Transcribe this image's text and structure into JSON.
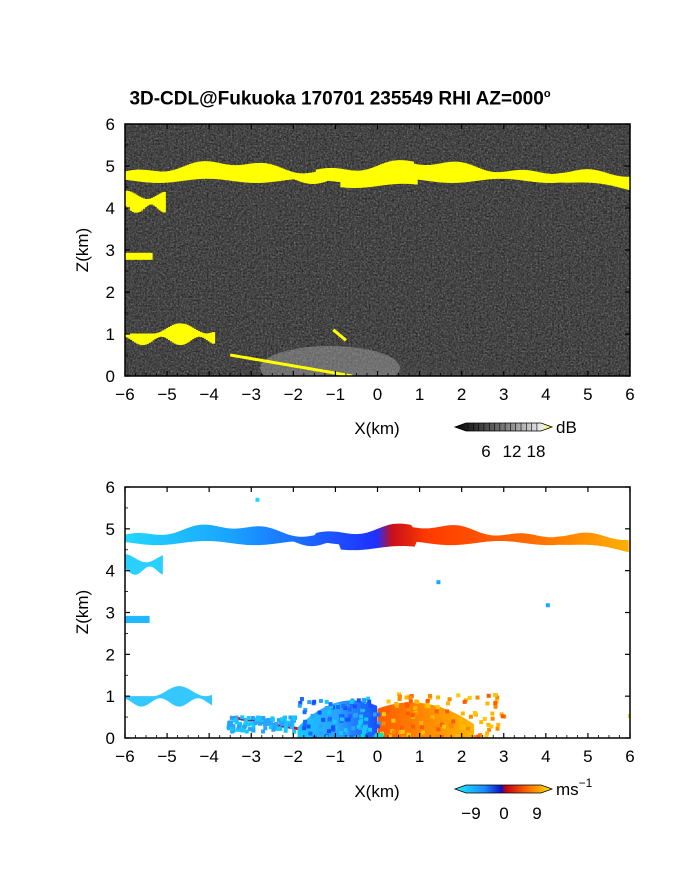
{
  "title": {
    "main": "3D-CDL@Fukuoka 170701 235549 RHI AZ=000",
    "sup": "o"
  },
  "colors": {
    "cloud_yellow": "#ffff00",
    "snr_background": "#262626",
    "velocity_cyan": "#00e5ff",
    "velocity_blue": "#1f3fff",
    "velocity_red": "#ff2a00",
    "velocity_orange": "#ff9900",
    "velocity_yellow": "#ffc800"
  },
  "chart_data": [
    {
      "type": "heatmap",
      "name": "snr-panel",
      "xlabel": "X(km)",
      "ylabel": "Z(km)",
      "xlim": [
        -6,
        6
      ],
      "ylim": [
        0,
        6
      ],
      "xticks": [
        "-6",
        "-5",
        "-4",
        "-3",
        "-2",
        "-1",
        "0",
        "1",
        "2",
        "3",
        "4",
        "5",
        "6"
      ],
      "yticks": [
        "0",
        "1",
        "2",
        "3",
        "4",
        "5",
        "6"
      ],
      "colorbar": {
        "unit": "dB",
        "ticks": [
          "6",
          "12",
          "18"
        ]
      },
      "features": [
        {
          "label": "upper-cloud-layer",
          "x": [
            -6,
            6
          ],
          "z_base": [
            4.7,
            4.5
          ],
          "z_top": [
            5.0,
            4.9
          ]
        },
        {
          "label": "detached-echo",
          "x": [
            -6,
            -5.1
          ],
          "z": [
            4.0,
            4.4
          ]
        },
        {
          "label": "detached-echo",
          "x": [
            -6,
            -5.4
          ],
          "z": [
            2.8,
            2.9
          ]
        },
        {
          "label": "low-cloud",
          "x": [
            -6,
            -3.9
          ],
          "z": [
            0.85,
            1.3
          ]
        },
        {
          "label": "ground-clutter-line",
          "x": [
            -3.5,
            -0.6
          ],
          "z": [
            0.5,
            0.0
          ]
        },
        {
          "label": "boundary-layer-aerosol",
          "x": [
            -2,
            4.5
          ],
          "z": [
            0.0,
            0.9
          ]
        }
      ]
    },
    {
      "type": "heatmap",
      "name": "velocity-panel",
      "xlabel": "X(km)",
      "ylabel": "Z(km)",
      "xlim": [
        -6,
        6
      ],
      "ylim": [
        0,
        6
      ],
      "xticks": [
        "-6",
        "-5",
        "-4",
        "-3",
        "-2",
        "-1",
        "0",
        "1",
        "2",
        "3",
        "4",
        "5",
        "6"
      ],
      "yticks": [
        "0",
        "1",
        "2",
        "3",
        "4",
        "5",
        "6"
      ],
      "colorbar": {
        "unit": "ms",
        "unit_sup": "−1",
        "ticks": [
          "−9",
          "0",
          "9"
        ],
        "range": [
          -9,
          9
        ]
      },
      "features": [
        {
          "label": "upper-layer-approaching",
          "x": [
            -6,
            0.5
          ],
          "velocity_ms": [
            -6,
            -2
          ]
        },
        {
          "label": "upper-layer-receding",
          "x": [
            0.5,
            6
          ],
          "velocity_ms": [
            3,
            7
          ]
        },
        {
          "label": "low-level-approaching",
          "x": [
            -6,
            0
          ],
          "velocity_ms": [
            -5,
            -3
          ]
        },
        {
          "label": "low-level-receding",
          "x": [
            0,
            3
          ],
          "velocity_ms": [
            4,
            7
          ]
        }
      ]
    }
  ]
}
